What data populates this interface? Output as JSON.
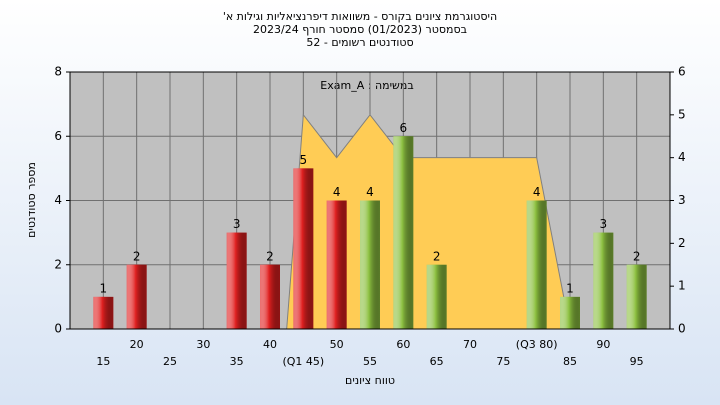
{
  "chart_data": {
    "type": "bar",
    "title_lines": [
      "היסטוגרמת ציונים בקורס - משוואות דיפרנציאליות וגילות א'",
      "בסמסטר  (01/2023)  סמסטר חורף 2023/24",
      "סטודנטים רשומים - 52"
    ],
    "annotation": "Exam_A : במשימה",
    "x_label": "טווח ציונים",
    "y_label": "מספר סטודנטים",
    "categories": [
      "15",
      "20",
      "25",
      "30",
      "35",
      "40",
      "(Q1 45)",
      "50",
      "55",
      "60",
      "65",
      "70",
      "75",
      "(Q3 80)",
      "85",
      "90",
      "95"
    ],
    "values": [
      1,
      2,
      null,
      null,
      3,
      2,
      5,
      4,
      4,
      6,
      2,
      null,
      null,
      4,
      1,
      3,
      2
    ],
    "colors": [
      "#e02020",
      "#e02020",
      null,
      null,
      "#e02020",
      "#e02020",
      "#e02020",
      "#e02020",
      "#8cc040",
      "#8cc040",
      "#8cc040",
      null,
      null,
      "#8cc040",
      "#8cc040",
      "#8cc040",
      "#8cc040"
    ],
    "ylim": [
      0,
      8
    ],
    "yticks": [
      0,
      2,
      4,
      6,
      8
    ],
    "y2lim": [
      0,
      6
    ],
    "y2ticks": [
      0,
      1,
      2,
      3,
      4,
      5,
      6
    ],
    "xlim": [
      10,
      100
    ],
    "area": {
      "axis": "y2",
      "color": "#ffcc55",
      "x": [
        42.5,
        45,
        50,
        55,
        60,
        80,
        85
      ],
      "values": [
        0,
        5,
        4,
        5,
        4,
        4,
        0
      ]
    },
    "grid": true
  }
}
